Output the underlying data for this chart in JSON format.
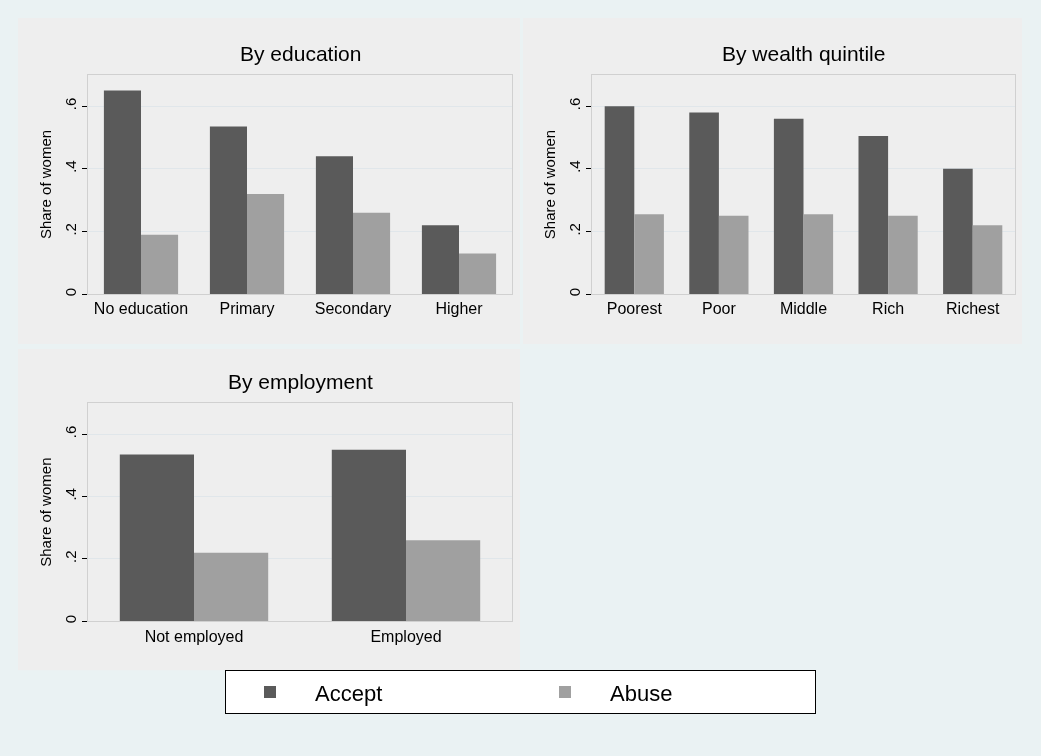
{
  "chart_data": [
    {
      "type": "bar",
      "title": "By education",
      "ylabel": "Share of women",
      "categories": [
        "No education",
        "Primary",
        "Secondary",
        "Higher"
      ],
      "series": [
        {
          "name": "Accept",
          "color": "#5a5a5a",
          "values": [
            0.65,
            0.535,
            0.44,
            0.22
          ]
        },
        {
          "name": "Abuse",
          "color": "#a0a0a0",
          "values": [
            0.19,
            0.32,
            0.26,
            0.13
          ]
        }
      ],
      "ylim": [
        0,
        0.7
      ],
      "yticks": [
        {
          "value": 0,
          "label": "0"
        },
        {
          "value": 0.2,
          "label": ".2"
        },
        {
          "value": 0.4,
          "label": ".4"
        },
        {
          "value": 0.6,
          "label": ".6"
        }
      ],
      "grid": "y",
      "legend": "bottom"
    },
    {
      "type": "bar",
      "title": "By wealth quintile",
      "ylabel": "Share of women",
      "categories": [
        "Poorest",
        "Poor",
        "Middle",
        "Rich",
        "Richest"
      ],
      "series": [
        {
          "name": "Accept",
          "color": "#5a5a5a",
          "values": [
            0.6,
            0.58,
            0.56,
            0.505,
            0.4
          ]
        },
        {
          "name": "Abuse",
          "color": "#a0a0a0",
          "values": [
            0.255,
            0.25,
            0.255,
            0.25,
            0.22
          ]
        }
      ],
      "ylim": [
        0,
        0.7
      ],
      "yticks": [
        {
          "value": 0,
          "label": "0"
        },
        {
          "value": 0.2,
          "label": ".2"
        },
        {
          "value": 0.4,
          "label": ".4"
        },
        {
          "value": 0.6,
          "label": ".6"
        }
      ],
      "grid": "y",
      "legend": "bottom"
    },
    {
      "type": "bar",
      "title": "By employment",
      "ylabel": "Share of women",
      "categories": [
        "Not employed",
        "Employed"
      ],
      "series": [
        {
          "name": "Accept",
          "color": "#5a5a5a",
          "values": [
            0.535,
            0.55
          ]
        },
        {
          "name": "Abuse",
          "color": "#a0a0a0",
          "values": [
            0.22,
            0.26
          ]
        }
      ],
      "ylim": [
        0,
        0.7
      ],
      "yticks": [
        {
          "value": 0,
          "label": "0"
        },
        {
          "value": 0.2,
          "label": ".2"
        },
        {
          "value": 0.4,
          "label": ".4"
        },
        {
          "value": 0.6,
          "label": ".6"
        }
      ],
      "grid": "y",
      "legend": "bottom"
    }
  ]
}
